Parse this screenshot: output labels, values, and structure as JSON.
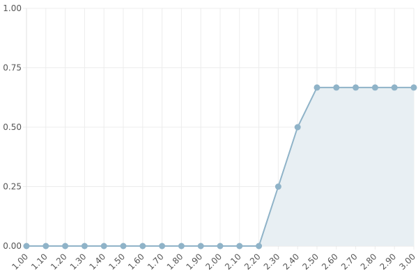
{
  "chart_data": {
    "type": "area",
    "title": "",
    "xlabel": "",
    "ylabel": "",
    "x": [
      1.0,
      1.1,
      1.2,
      1.3,
      1.4,
      1.5,
      1.6,
      1.7,
      1.8,
      1.9,
      2.0,
      2.1,
      2.2,
      2.3,
      2.4,
      2.5,
      2.6,
      2.7,
      2.8,
      2.9,
      3.0
    ],
    "x_tick_labels": [
      "1.00",
      "1.10",
      "1.20",
      "1.30",
      "1.40",
      "1.50",
      "1.60",
      "1.70",
      "1.80",
      "1.90",
      "2.00",
      "2.10",
      "2.20",
      "2.30",
      "2.40",
      "2.50",
      "2.60",
      "2.70",
      "2.80",
      "2.90",
      "3.00"
    ],
    "series": [
      {
        "values": [
          0,
          0,
          0,
          0,
          0,
          0,
          0,
          0,
          0,
          0,
          0,
          0,
          0,
          0.25,
          0.5,
          0.667,
          0.667,
          0.667,
          0.667,
          0.667,
          0.667
        ]
      }
    ],
    "ylim": [
      0,
      1
    ],
    "y_ticks": [
      0,
      0.25,
      0.5,
      0.75,
      1
    ],
    "y_tick_labels": [
      "0.00",
      "0.25",
      "0.50",
      "0.75",
      "1.00"
    ],
    "grid": true,
    "colors": {
      "line": "#8fb3c8",
      "fill": "#e8eff3",
      "grid": "#ececec"
    }
  }
}
